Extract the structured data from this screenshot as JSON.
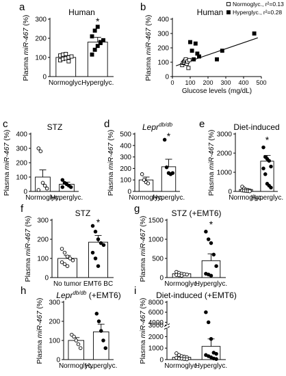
{
  "figure": {
    "background": "#ffffff",
    "ink": "#000000"
  },
  "chart_data": [
    {
      "panel": "a",
      "type": "bar",
      "title": "Human",
      "ylabel_prefix": "Plasma ",
      "ylabel_em": "miR-467",
      "ylabel_suffix": " (%)",
      "ylim": [
        0,
        300
      ],
      "yticks": [
        0,
        100,
        200,
        300
      ],
      "categories": [
        "Normoglyc.",
        "Hyperglyc."
      ],
      "values": [
        100,
        180
      ],
      "sem": [
        10,
        25
      ],
      "points": [
        [
          85,
          92,
          95,
          100,
          105,
          110,
          115,
          118,
          80
        ],
        [
          115,
          140,
          160,
          175,
          190,
          210,
          240,
          260,
          180
        ]
      ],
      "point_style": [
        "open-square",
        "filled-square"
      ],
      "annotations": [
        {
          "category": "Hyperglyc.",
          "text": "*"
        }
      ]
    },
    {
      "panel": "b",
      "type": "scatter",
      "title": "Human",
      "ylabel_prefix": "Plasma ",
      "ylabel_em": "miR-467",
      "ylabel_suffix": " (%)",
      "xlabel": "Glucose levels (mg/dL)",
      "xlim": [
        0,
        500
      ],
      "xticks": [
        0,
        100,
        200,
        300,
        400,
        500
      ],
      "ylim": [
        0,
        400
      ],
      "yticks": [
        0,
        100,
        200,
        300,
        400
      ],
      "legend": [
        {
          "label": "Normoglyc., r²=0.13",
          "marker": "open-square"
        },
        {
          "label": "Hyperglyc., r²=0.28",
          "marker": "filled-square"
        }
      ],
      "legend_position": "top-right",
      "series": [
        {
          "name": "Normoglyc.",
          "marker": "open-square",
          "x": [
            55,
            60,
            65,
            70,
            75,
            80,
            85,
            90,
            95
          ],
          "y": [
            80,
            95,
            100,
            110,
            120,
            90,
            105,
            60,
            115
          ]
        },
        {
          "name": "Hyperglyc.",
          "marker": "filled-square",
          "x": [
            100,
            110,
            120,
            130,
            140,
            250,
            280,
            460,
            150
          ],
          "y": [
            240,
            180,
            120,
            230,
            160,
            120,
            180,
            300,
            140
          ]
        }
      ],
      "fit_line": {
        "x": [
          20,
          480
        ],
        "y": [
          75,
          270
        ]
      }
    },
    {
      "panel": "c",
      "type": "bar",
      "title": "STZ",
      "ylabel_prefix": "Plasma ",
      "ylabel_em": "miR-467",
      "ylabel_suffix": " (%)",
      "ylim": [
        0,
        400
      ],
      "yticks": [
        0,
        100,
        200,
        300,
        400
      ],
      "categories": [
        "Normoglyc.",
        "Hyperglyc."
      ],
      "values": [
        100,
        50
      ],
      "sem": [
        50,
        15
      ],
      "points": [
        [
          300,
          280,
          60,
          40,
          20,
          10
        ],
        [
          80,
          60,
          50,
          40,
          30,
          30
        ]
      ],
      "point_style": [
        "open-circle",
        "filled-circle"
      ],
      "annotations": []
    },
    {
      "panel": "d",
      "type": "bar",
      "title_em": "Lepr",
      "title_sup": "db/db",
      "ylabel_prefix": "Plasma ",
      "ylabel_em": "miR-467",
      "ylabel_suffix": " (%)",
      "ylim": [
        0,
        500
      ],
      "yticks": [
        0,
        100,
        200,
        300,
        400,
        500
      ],
      "categories": [
        "Normoglyc.",
        "Hyperglyc."
      ],
      "values": [
        100,
        215
      ],
      "sem": [
        25,
        65
      ],
      "points": [
        [
          150,
          100,
          80,
          70
        ],
        [
          450,
          210,
          160,
          150,
          160
        ]
      ],
      "point_style": [
        "open-circle",
        "filled-circle"
      ],
      "annotations": [
        {
          "category": "Hyperglyc.",
          "text": "*"
        }
      ]
    },
    {
      "panel": "e",
      "type": "bar",
      "title": "Diet-induced",
      "ylabel_prefix": "Plasma ",
      "ylabel_em": "miR-467",
      "ylabel_suffix": " (%)",
      "ylim": [
        0,
        3000
      ],
      "yticks": [
        0,
        1000,
        2000,
        3000
      ],
      "categories": [
        "Normoglyc.",
        "Hyperglyc."
      ],
      "values": [
        100,
        1580
      ],
      "sem": [
        30,
        300
      ],
      "points": [
        [
          250,
          150,
          100,
          80,
          60,
          50,
          40,
          30,
          20,
          10
        ],
        [
          2300,
          1800,
          1700,
          1600,
          1300,
          1200,
          900,
          400,
          300,
          200
        ]
      ],
      "point_style": [
        "open-circle",
        "filled-circle"
      ],
      "annotations": [
        {
          "category": "Hyperglyc.",
          "text": "*"
        }
      ]
    },
    {
      "panel": "f",
      "type": "bar",
      "title": "STZ",
      "ylabel_prefix": "Plasma ",
      "ylabel_em": "miR-467",
      "ylabel_suffix": " (%)",
      "ylim": [
        0,
        300
      ],
      "yticks": [
        0,
        100,
        200,
        300
      ],
      "categories": [
        "No tumor",
        "EMT6 BC"
      ],
      "values": [
        100,
        185
      ],
      "sem": [
        15,
        35
      ],
      "points": [
        [
          150,
          130,
          110,
          100,
          90,
          80,
          70,
          60
        ],
        [
          270,
          240,
          200,
          180,
          170,
          130,
          100,
          60
        ]
      ],
      "point_style": [
        "open-circle",
        "filled-circle"
      ],
      "annotations": [
        {
          "category": "EMT6 BC",
          "text": "*"
        }
      ]
    },
    {
      "panel": "g",
      "type": "bar",
      "title": "STZ (+EMT6)",
      "ylabel_prefix": "Plasma ",
      "ylabel_em": "miR-467",
      "ylabel_suffix": " (%)",
      "ylim": [
        0,
        1500
      ],
      "yticks": [
        0,
        500,
        1000,
        1500
      ],
      "categories": [
        "Normoglyc.",
        "Hyperglyc."
      ],
      "values": [
        100,
        440
      ],
      "sem": [
        20,
        180
      ],
      "points": [
        [
          150,
          120,
          100,
          90,
          80,
          70,
          60,
          50
        ],
        [
          1200,
          1000,
          900,
          600,
          300,
          100,
          80,
          50
        ]
      ],
      "point_style": [
        "open-circle",
        "filled-circle"
      ],
      "annotations": [
        {
          "category": "Hyperglyc.",
          "text": "*"
        }
      ]
    },
    {
      "panel": "h",
      "type": "bar",
      "title_em": "Lepr",
      "title_sup": "db/db",
      "title_suffix": " (+EMT6)",
      "ylabel_prefix": "Plasma ",
      "ylabel_em": "miR-467",
      "ylabel_suffix": " (%)",
      "ylim": [
        0,
        300
      ],
      "yticks": [
        0,
        100,
        200,
        300
      ],
      "categories": [
        "Normoglyc.",
        "Hyperglyc."
      ],
      "values": [
        100,
        145
      ],
      "sem": [
        15,
        40
      ],
      "points": [
        [
          130,
          120,
          100,
          80,
          60
        ],
        [
          240,
          200,
          150,
          100,
          60
        ]
      ],
      "point_style": [
        "open-circle",
        "filled-circle"
      ],
      "annotations": []
    },
    {
      "panel": "i",
      "type": "bar",
      "title": "Diet-induced (+EMT6)",
      "ylabel_prefix": "Plasma ",
      "ylabel_em": "miR-467",
      "ylabel_suffix": " (%)",
      "ylim": [
        0,
        8000
      ],
      "yticks": [
        0,
        1000,
        2000,
        3000,
        4000,
        6000,
        8000
      ],
      "axis_break": [
        3000,
        4000
      ],
      "categories": [
        "Normoglyc.",
        "Hyperglyc."
      ],
      "values": [
        200,
        1150
      ],
      "sem": [
        80,
        650
      ],
      "points": [
        [
          550,
          400,
          300,
          250,
          200,
          150,
          100,
          80,
          50,
          30
        ],
        [
          6000,
          3500,
          1800,
          600,
          500,
          400,
          300,
          200,
          100,
          50
        ]
      ],
      "point_style": [
        "open-circle",
        "filled-circle"
      ],
      "annotations": []
    }
  ]
}
